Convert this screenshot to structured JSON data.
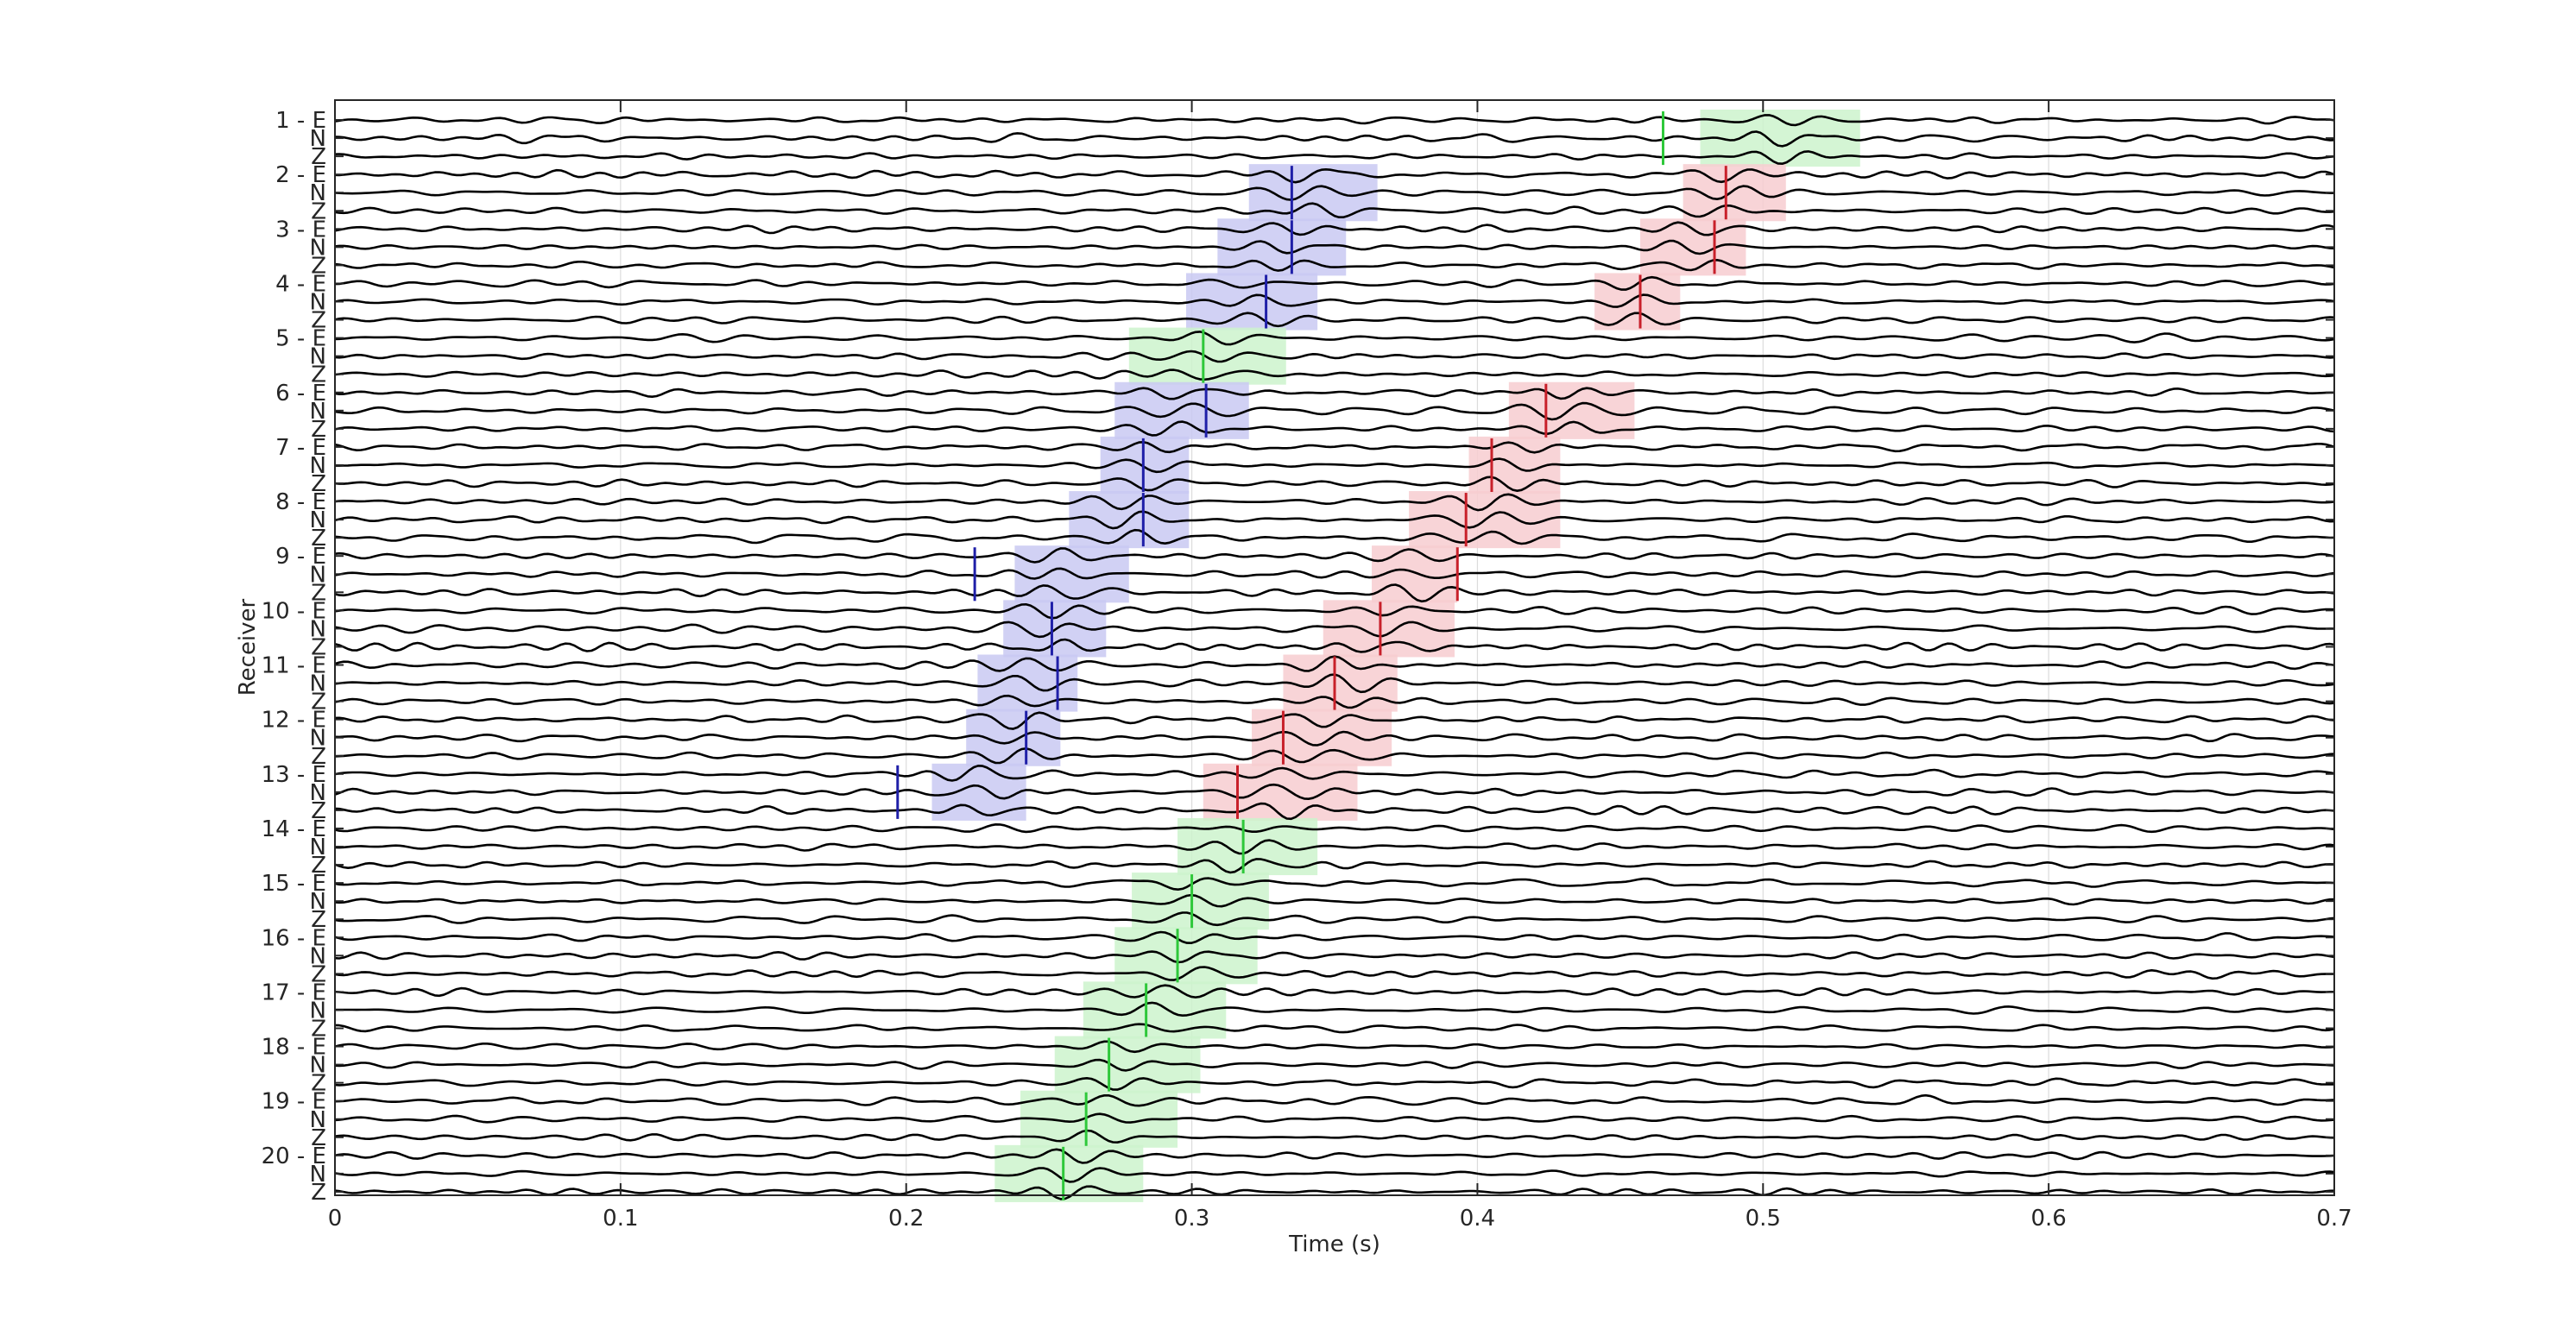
{
  "chart_data": {
    "type": "line",
    "title": "",
    "xlabel": "Time (s)",
    "ylabel": "Receiver",
    "xlim": [
      0,
      0.7
    ],
    "x_ticks": [
      "0",
      "0.1",
      "0.2",
      "0.3",
      "0.4",
      "0.5",
      "0.6",
      "0.7"
    ],
    "x_tick_values": [
      0,
      0.1,
      0.2,
      0.3,
      0.4,
      0.5,
      0.6,
      0.7
    ],
    "grid": true,
    "components": [
      "E",
      "N",
      "Z"
    ],
    "colors": {
      "blue": "#1f1fa8",
      "red": "#c8202a",
      "green": "#2ec83a",
      "blue_fill": "#c9c9f2",
      "red_fill": "#f7cdd0",
      "green_fill": "#cdf3cd",
      "trace": "#000000"
    },
    "receivers": [
      {
        "label": "1 - E",
        "phases": [
          {
            "color": "green",
            "pick": 0.465,
            "win": [
              0.478,
              0.534
            ]
          }
        ]
      },
      {
        "label": "2 - E",
        "phases": [
          {
            "color": "blue",
            "pick": 0.335,
            "win": [
              0.32,
              0.365
            ]
          },
          {
            "color": "red",
            "pick": 0.487,
            "win": [
              0.472,
              0.508
            ]
          }
        ]
      },
      {
        "label": "3 - E",
        "phases": [
          {
            "color": "blue",
            "pick": 0.335,
            "win": [
              0.309,
              0.354
            ]
          },
          {
            "color": "red",
            "pick": 0.483,
            "win": [
              0.457,
              0.494
            ]
          }
        ]
      },
      {
        "label": "4 - E",
        "phases": [
          {
            "color": "blue",
            "pick": 0.326,
            "win": [
              0.298,
              0.344
            ]
          },
          {
            "color": "red",
            "pick": 0.457,
            "win": [
              0.441,
              0.471
            ]
          }
        ]
      },
      {
        "label": "5 - E",
        "phases": [
          {
            "color": "green",
            "pick": 0.304,
            "win": [
              0.278,
              0.333
            ]
          }
        ]
      },
      {
        "label": "6 - E",
        "phases": [
          {
            "color": "blue",
            "pick": 0.305,
            "win": [
              0.273,
              0.32
            ]
          },
          {
            "color": "red",
            "pick": 0.424,
            "win": [
              0.411,
              0.455
            ]
          }
        ]
      },
      {
        "label": "7 - E",
        "phases": [
          {
            "color": "blue",
            "pick": 0.283,
            "win": [
              0.268,
              0.299
            ]
          },
          {
            "color": "red",
            "pick": 0.405,
            "win": [
              0.397,
              0.429
            ]
          }
        ]
      },
      {
        "label": "8 - E",
        "phases": [
          {
            "color": "blue",
            "pick": 0.283,
            "win": [
              0.257,
              0.299
            ]
          },
          {
            "color": "red",
            "pick": 0.396,
            "win": [
              0.376,
              0.429
            ]
          }
        ]
      },
      {
        "label": "9 - E",
        "phases": [
          {
            "color": "blue",
            "pick": 0.224,
            "win": [
              0.238,
              0.278
            ]
          },
          {
            "color": "red",
            "pick": 0.393,
            "win": [
              0.363,
              0.393
            ]
          }
        ]
      },
      {
        "label": "10 - E",
        "phases": [
          {
            "color": "blue",
            "pick": 0.251,
            "win": [
              0.234,
              0.27
            ]
          },
          {
            "color": "red",
            "pick": 0.366,
            "win": [
              0.346,
              0.392
            ]
          }
        ]
      },
      {
        "label": "11 - E",
        "phases": [
          {
            "color": "blue",
            "pick": 0.253,
            "win": [
              0.225,
              0.26
            ]
          },
          {
            "color": "red",
            "pick": 0.35,
            "win": [
              0.332,
              0.372
            ]
          }
        ]
      },
      {
        "label": "12 - E",
        "phases": [
          {
            "color": "blue",
            "pick": 0.242,
            "win": [
              0.221,
              0.254
            ]
          },
          {
            "color": "red",
            "pick": 0.332,
            "win": [
              0.321,
              0.37
            ]
          }
        ]
      },
      {
        "label": "13 - E",
        "phases": [
          {
            "color": "blue",
            "pick": 0.197,
            "win": [
              0.209,
              0.242
            ]
          },
          {
            "color": "red",
            "pick": 0.316,
            "win": [
              0.304,
              0.358
            ]
          }
        ]
      },
      {
        "label": "14 - E",
        "phases": [
          {
            "color": "green",
            "pick": 0.318,
            "win": [
              0.295,
              0.344
            ]
          }
        ]
      },
      {
        "label": "15 - E",
        "phases": [
          {
            "color": "green",
            "pick": 0.3,
            "win": [
              0.279,
              0.327
            ]
          }
        ]
      },
      {
        "label": "16 - E",
        "phases": [
          {
            "color": "green",
            "pick": 0.295,
            "win": [
              0.273,
              0.323
            ]
          }
        ]
      },
      {
        "label": "17 - E",
        "phases": [
          {
            "color": "green",
            "pick": 0.284,
            "win": [
              0.262,
              0.312
            ]
          }
        ]
      },
      {
        "label": "18 - E",
        "phases": [
          {
            "color": "green",
            "pick": 0.271,
            "win": [
              0.252,
              0.303
            ]
          }
        ]
      },
      {
        "label": "19 - E",
        "phases": [
          {
            "color": "green",
            "pick": 0.263,
            "win": [
              0.24,
              0.295
            ]
          }
        ]
      },
      {
        "label": "20 - E",
        "phases": [
          {
            "color": "green",
            "pick": 0.255,
            "win": [
              0.231,
              0.283
            ]
          }
        ]
      }
    ]
  }
}
